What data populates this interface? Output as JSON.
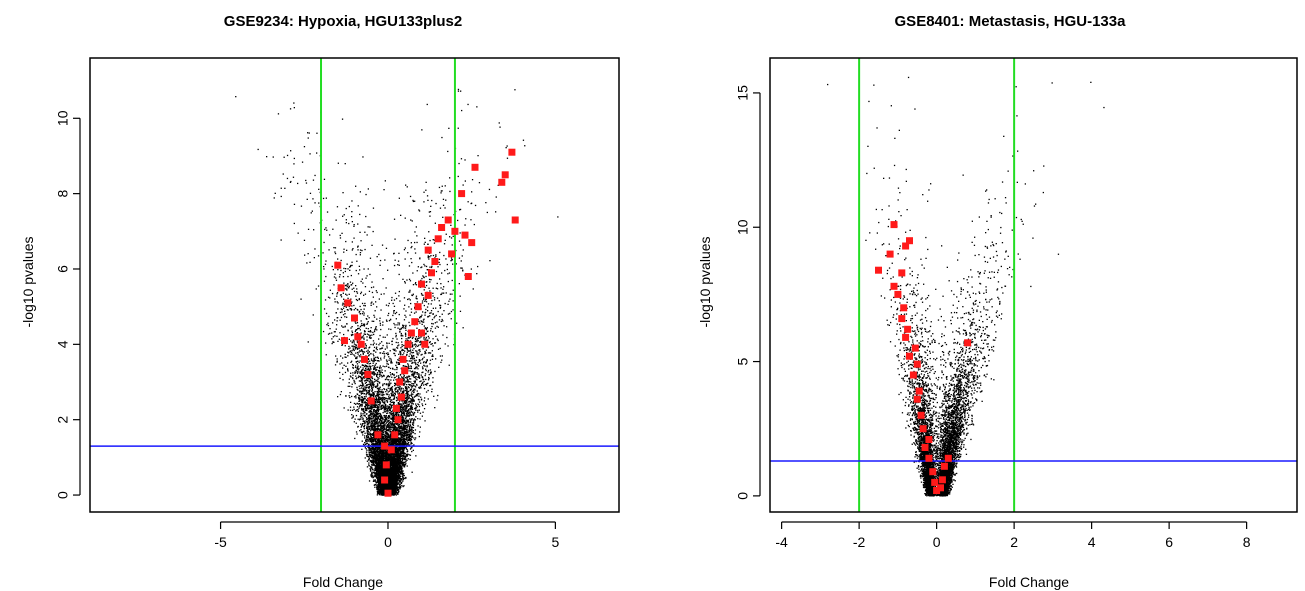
{
  "chart_data": [
    {
      "type": "scatter",
      "title": "GSE9234: Hypoxia, HGU133plus2",
      "xlabel": "Fold Change",
      "ylabel": "-log10 pvalues",
      "xlim": [
        -8.9,
        6.9
      ],
      "ylim": [
        -0.45,
        11.6
      ],
      "xticks": [
        -5,
        0,
        5
      ],
      "yticks": [
        0,
        2,
        4,
        6,
        8,
        10
      ],
      "reference_lines": {
        "vertical": [
          {
            "x": -2,
            "color": "#22dd22"
          },
          {
            "x": 2,
            "color": "#22dd22"
          }
        ],
        "horizontal": [
          {
            "y": 1.3,
            "color": "#1a1aff"
          }
        ]
      },
      "background_points": {
        "color": "#000000",
        "approx_count": 9000,
        "shape": "volcano, vertex at (0,0), spreading to x approx -8 to 6.5 at y approx 10"
      },
      "highlighted_points": {
        "color": "#ff1a1a",
        "points": [
          [
            0.0,
            0.05
          ],
          [
            -0.1,
            0.4
          ],
          [
            -0.05,
            0.8
          ],
          [
            0.1,
            1.2
          ],
          [
            -0.1,
            1.3
          ],
          [
            0.2,
            1.6
          ],
          [
            0.3,
            2.0
          ],
          [
            0.25,
            2.3
          ],
          [
            0.4,
            2.6
          ],
          [
            0.35,
            3.0
          ],
          [
            0.5,
            3.3
          ],
          [
            0.45,
            3.6
          ],
          [
            0.6,
            4.0
          ],
          [
            0.7,
            4.3
          ],
          [
            0.8,
            4.6
          ],
          [
            1.0,
            4.3
          ],
          [
            1.1,
            4.0
          ],
          [
            0.9,
            5.0
          ],
          [
            1.2,
            5.3
          ],
          [
            1.0,
            5.6
          ],
          [
            1.3,
            5.9
          ],
          [
            1.4,
            6.2
          ],
          [
            1.2,
            6.5
          ],
          [
            1.5,
            6.8
          ],
          [
            1.6,
            7.1
          ],
          [
            1.8,
            7.3
          ],
          [
            2.0,
            7.0
          ],
          [
            1.9,
            6.4
          ],
          [
            2.2,
            8.0
          ],
          [
            2.3,
            6.9
          ],
          [
            2.5,
            6.7
          ],
          [
            2.4,
            5.8
          ],
          [
            2.6,
            8.7
          ],
          [
            3.4,
            8.3
          ],
          [
            3.5,
            8.5
          ],
          [
            3.7,
            9.1
          ],
          [
            3.8,
            7.3
          ],
          [
            -0.3,
            1.6
          ],
          [
            -0.5,
            2.5
          ],
          [
            -0.6,
            3.2
          ],
          [
            -0.7,
            3.6
          ],
          [
            -0.8,
            4.0
          ],
          [
            -0.9,
            4.2
          ],
          [
            -1.0,
            4.7
          ],
          [
            -1.2,
            5.1
          ],
          [
            -1.3,
            4.1
          ],
          [
            -1.5,
            6.1
          ],
          [
            -1.4,
            5.5
          ]
        ]
      },
      "grid": false
    },
    {
      "type": "scatter",
      "title": "GSE8401: Metastasis, HGU-133a",
      "xlabel": "Fold Change",
      "ylabel": "-log10 pvalues",
      "xlim": [
        -4.3,
        9.3
      ],
      "ylim": [
        -0.6,
        16.3
      ],
      "xticks": [
        -4,
        -2,
        0,
        2,
        4,
        6,
        8
      ],
      "yticks": [
        0,
        5,
        10,
        15
      ],
      "reference_lines": {
        "vertical": [
          {
            "x": -2,
            "color": "#22dd22"
          },
          {
            "x": 2,
            "color": "#22dd22"
          }
        ],
        "horizontal": [
          {
            "y": 1.3,
            "color": "#1a1aff"
          }
        ]
      },
      "background_points": {
        "color": "#000000",
        "approx_count": 7000,
        "shape": "skewed volcano, vertex at (0,0), left arm reaching x approx -1.8 at y approx 13, right arm reaching x approx 5 at y approx 15.6"
      },
      "highlighted_points": {
        "color": "#ff1a1a",
        "points": [
          [
            0.0,
            0.2
          ],
          [
            0.1,
            0.3
          ],
          [
            -0.05,
            0.5
          ],
          [
            0.15,
            0.6
          ],
          [
            -0.1,
            0.9
          ],
          [
            0.2,
            1.1
          ],
          [
            -0.2,
            1.4
          ],
          [
            -0.3,
            1.8
          ],
          [
            -0.2,
            2.1
          ],
          [
            -0.35,
            2.5
          ],
          [
            -0.4,
            3.0
          ],
          [
            -0.5,
            3.6
          ],
          [
            -0.45,
            3.9
          ],
          [
            -0.6,
            4.5
          ],
          [
            -0.5,
            4.9
          ],
          [
            -0.7,
            5.2
          ],
          [
            -0.55,
            5.5
          ],
          [
            -0.8,
            5.9
          ],
          [
            -0.75,
            6.2
          ],
          [
            -0.9,
            6.6
          ],
          [
            -0.85,
            7.0
          ],
          [
            -1.0,
            7.5
          ],
          [
            -1.1,
            7.8
          ],
          [
            -0.9,
            8.3
          ],
          [
            -1.5,
            8.4
          ],
          [
            -1.2,
            9.0
          ],
          [
            -0.8,
            9.3
          ],
          [
            -0.7,
            9.5
          ],
          [
            -1.1,
            10.1
          ],
          [
            0.8,
            5.7
          ],
          [
            0.3,
            1.4
          ]
        ]
      },
      "grid": false
    }
  ]
}
